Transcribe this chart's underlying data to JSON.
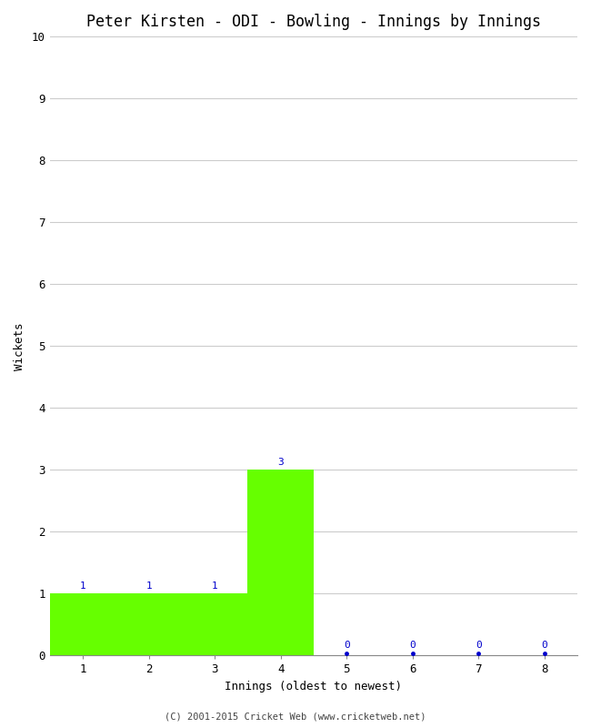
{
  "title": "Peter Kirsten - ODI - Bowling - Innings by Innings",
  "xlabel": "Innings (oldest to newest)",
  "ylabel": "Wickets",
  "categories": [
    1,
    2,
    3,
    4,
    5,
    6,
    7,
    8
  ],
  "values": [
    1,
    1,
    1,
    3,
    0,
    0,
    0,
    0
  ],
  "bar_color": "#66ff00",
  "bar_edge_color": "#000000",
  "zero_dot_color": "#0000cc",
  "label_color_nonzero": "#0000cc",
  "label_color_zero": "#0000cc",
  "ylim": [
    0,
    10
  ],
  "yticks": [
    0,
    1,
    2,
    3,
    4,
    5,
    6,
    7,
    8,
    9,
    10
  ],
  "xticks": [
    1,
    2,
    3,
    4,
    5,
    6,
    7,
    8
  ],
  "background_color": "#ffffff",
  "grid_color": "#cccccc",
  "title_fontsize": 12,
  "axis_label_fontsize": 9,
  "tick_fontsize": 9,
  "annotation_fontsize": 8,
  "footer": "(C) 2001-2015 Cricket Web (www.cricketweb.net)"
}
